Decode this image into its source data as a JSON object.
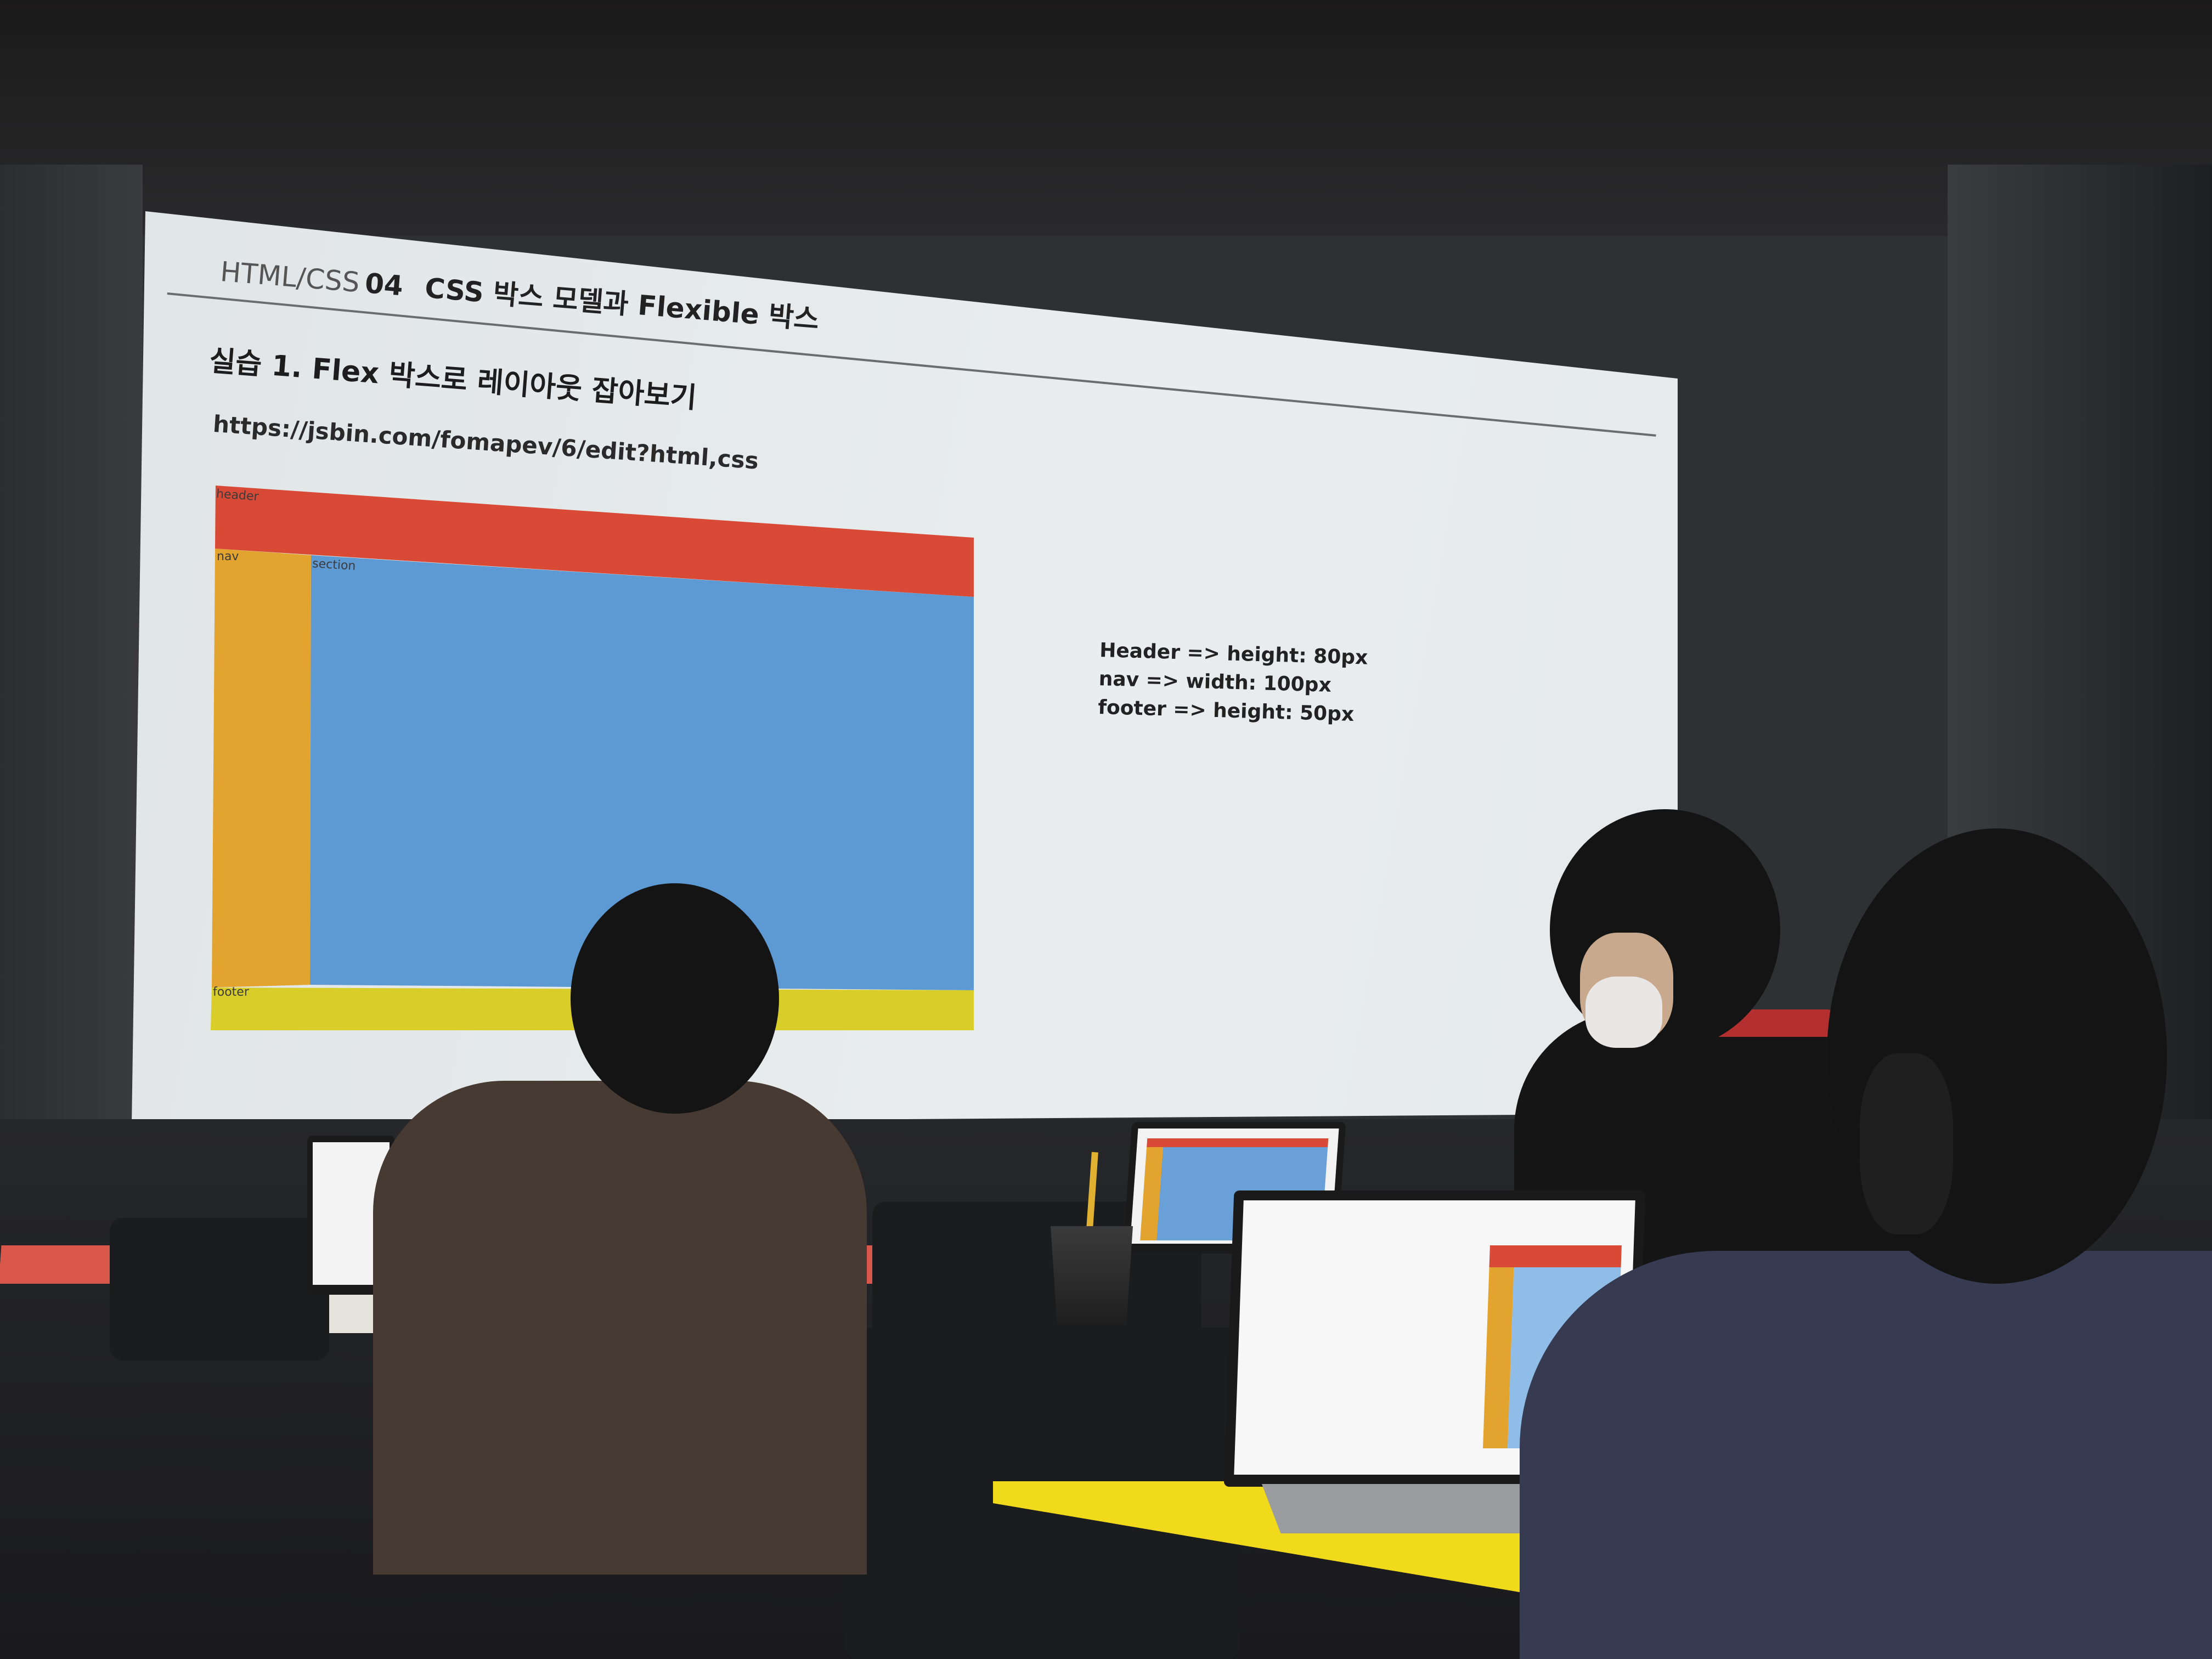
{
  "slide": {
    "course": "HTML/CSS",
    "course_number": "04",
    "course_title": "CSS 박스 모델과 Flexible 박스",
    "exercise": "실습 1. Flex 박스로 레이아웃 잡아보기",
    "url": "https://jsbin.com/fomapev/6/edit?html,css",
    "demo": {
      "header_label": "header",
      "nav_label": "nav",
      "section_label": "section",
      "footer_label": "footer",
      "colors": {
        "header": "#d94a36",
        "nav": "#e3a42f",
        "section": "#5d9ad4",
        "footer": "#d9cd2a"
      }
    },
    "notes": [
      "Header => height: 80px",
      "nav => width: 100px",
      "footer => height: 50px"
    ]
  }
}
